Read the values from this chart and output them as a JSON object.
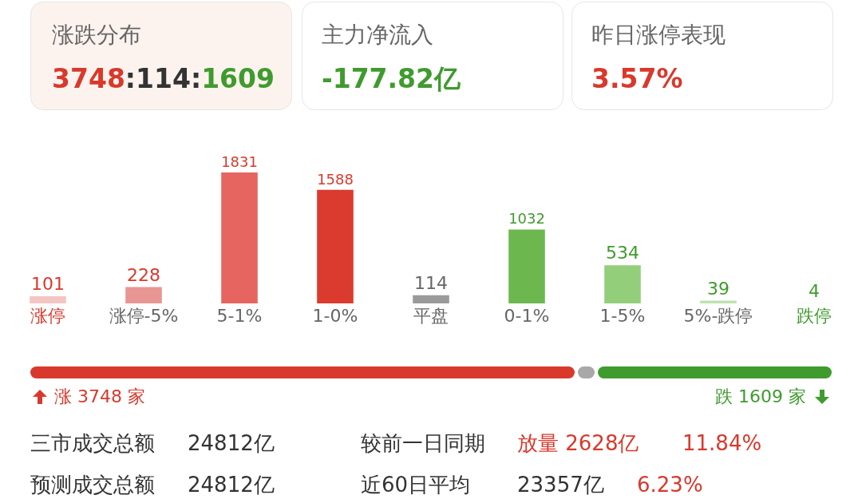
{
  "chart_data": {
    "type": "bar",
    "categories": [
      "涨停",
      "涨停-5%",
      "5-1%",
      "1-0%",
      "平盘",
      "0-1%",
      "1-5%",
      "5%-跌停",
      "跌停"
    ],
    "values": [
      101,
      228,
      1831,
      1588,
      114,
      1032,
      534,
      39,
      4
    ],
    "colors": [
      "#f3c6c4",
      "#e89693",
      "#e66560",
      "#da3b2e",
      "#9a9a9a",
      "#6cb84f",
      "#93cf7b",
      "#bfe3b0",
      "#d9eed1"
    ],
    "data_labels": true,
    "annotations": [
      "涨跌分布",
      "3748:114:1609",
      "主力净流入",
      "-177.82亿",
      "昨日涨停表现",
      "3.57%",
      "涨 3748 家",
      "跌 1609 家",
      "三市成交总额",
      "24812亿",
      "较前一日同期",
      "放量 2628亿",
      "11.84%",
      "预测成交总额",
      "24812亿",
      "近60日平均",
      "23357亿",
      "6.23%"
    ]
  }
}
